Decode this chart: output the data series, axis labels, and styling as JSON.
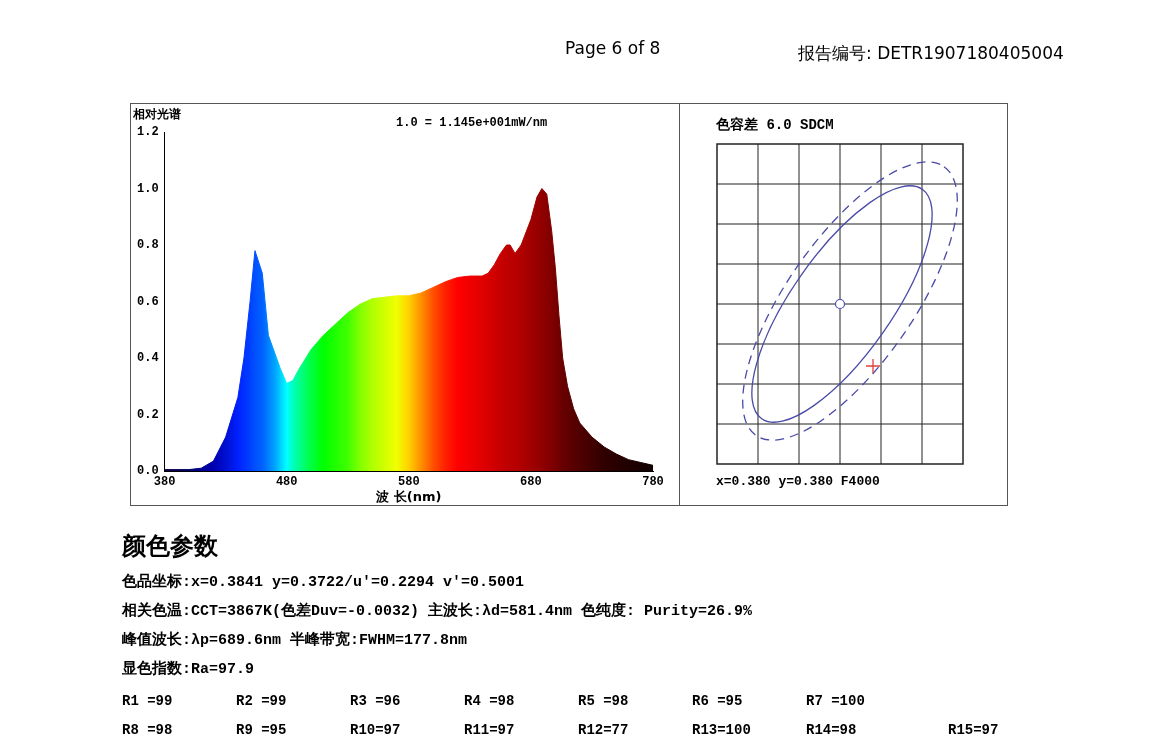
{
  "chart_data": [
    {
      "type": "area",
      "subtitle": "1.0 = 1.145e+001mW/nm",
      "xlabel": "波 长(nm)",
      "ylabel": "相对光谱",
      "annotations": [
        "Page 6 of 8",
        "报告编号: DETR1907180405004"
      ],
      "x": [
        380,
        400,
        410,
        420,
        430,
        440,
        445,
        450,
        454,
        460,
        465,
        470,
        475,
        480,
        485,
        490,
        500,
        510,
        520,
        530,
        540,
        550,
        560,
        570,
        580,
        590,
        600,
        610,
        620,
        630,
        640,
        645,
        650,
        655,
        660,
        663,
        667,
        672,
        680,
        685,
        689,
        693,
        697,
        700,
        703,
        706,
        710,
        715,
        720,
        730,
        740,
        750,
        760,
        770,
        780
      ],
      "series": [
        {
          "values": [
            0.005,
            0.005,
            0.01,
            0.035,
            0.12,
            0.26,
            0.4,
            0.6,
            0.78,
            0.7,
            0.48,
            0.42,
            0.36,
            0.31,
            0.32,
            0.36,
            0.43,
            0.48,
            0.52,
            0.56,
            0.59,
            0.61,
            0.615,
            0.62,
            0.62,
            0.63,
            0.65,
            0.67,
            0.685,
            0.69,
            0.69,
            0.7,
            0.73,
            0.77,
            0.8,
            0.8,
            0.77,
            0.8,
            0.89,
            0.97,
            1.0,
            0.98,
            0.85,
            0.72,
            0.55,
            0.4,
            0.3,
            0.22,
            0.17,
            0.12,
            0.085,
            0.06,
            0.04,
            0.03,
            0.02
          ],
          "colors": [
            "#100040",
            "#000070",
            "#000090",
            "#0000b0",
            "#0010d0",
            "#0020ff",
            "#0030ff",
            "#0040ff",
            "#0050ff",
            "#0060ff",
            "#0080ff",
            "#00a0ff",
            "#00d0ff",
            "#00ffff",
            "#00ffc0",
            "#00ff90",
            "#00ff40",
            "#00ff00",
            "#20ff00",
            "#40ff00",
            "#80ff00",
            "#b0ff00",
            "#d0ff00",
            "#f0ff00",
            "#ffd000",
            "#ff9000",
            "#ff5000",
            "#ff2000",
            "#ff0000",
            "#f00000",
            "#e00000",
            "#d80000",
            "#d00000",
            "#c80000",
            "#c00000",
            "#bc0000",
            "#b80000",
            "#b00000",
            "#a00000",
            "#980000",
            "#900000",
            "#880000",
            "#800000",
            "#780000",
            "#700000",
            "#680000",
            "#600000",
            "#580000",
            "#500000",
            "#400000",
            "#300000",
            "#280000",
            "#200000",
            "#180000",
            "#100000"
          ]
        }
      ],
      "xlim": [
        380,
        780
      ],
      "xticks": [
        380,
        480,
        580,
        680,
        780
      ],
      "ylim": [
        0,
        1.2
      ],
      "yticks": [
        {
          "value": 0,
          "label": "0.0"
        },
        {
          "value": 0.2,
          "label": "0.2"
        },
        {
          "value": 0.4,
          "label": "0.4"
        },
        {
          "value": 0.6,
          "label": "0.6"
        },
        {
          "value": 0.8,
          "label": "0.8"
        },
        {
          "value": 1,
          "label": "1.0"
        },
        {
          "value": 1.2,
          "label": "1.2"
        }
      ],
      "grid": false,
      "legend": false
    },
    {
      "type": "other",
      "title": "色容差    6.0 SDCM",
      "annotations": [
        "x=0.380 y=0.380 F4000"
      ]
    },
    {
      "type": "other",
      "title": "颜色参数",
      "annotations": [
        "色品坐标:x=0.3841   y=0.3722/u'=0.2294 v'=0.5001",
        "相关色温:CCT=3867K(色差Duv=-0.0032) 主波长:λd=581.4nm 色纯度: Purity=26.9%",
        "峰值波长:λp=689.6nm  半峰带宽:FWHM=177.8nm",
        "显色指数:Ra=97.9"
      ]
    },
    {
      "type": "other",
      "annotations": [
        "R1 =99",
        "R2 =99",
        "R3 =96",
        "R4 =98",
        "R5 =98",
        "R6 =95",
        "R7 =100",
        "R8 =98",
        "R9 =95",
        "R10=97",
        "R11=97",
        "R12=77",
        "R13=100",
        "R14=98",
        "R15=97"
      ]
    }
  ]
}
